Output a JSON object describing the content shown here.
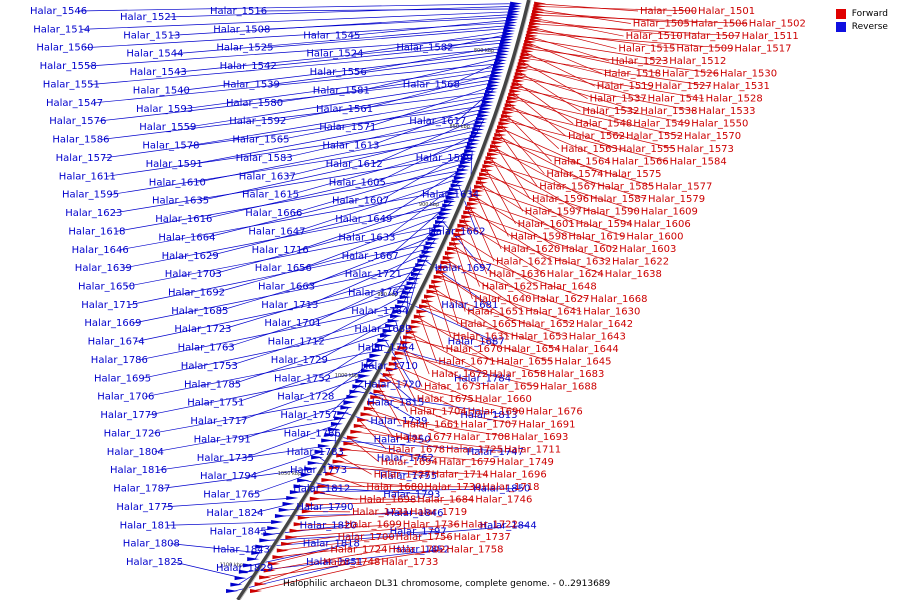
{
  "caption": "Halophilic archaeon DL31 chromosome, complete genome. - 0..2913689",
  "legend": [
    {
      "label": "Forward",
      "color": "#e00000"
    },
    {
      "label": "Reverse",
      "color": "#1010e0"
    }
  ],
  "colors": {
    "forward": "#cc0000",
    "reverse": "#0000cc",
    "backbone": "#555555"
  },
  "scale_ticks": [
    "800 kbp",
    "850 kbp",
    "900 kbp",
    "950 kbp",
    "1000 kbp",
    "1050 kbp",
    "1100 kbp"
  ],
  "reverse_genes": [
    "Halar_1546",
    "Halar_1521",
    "Halar_1516",
    "Halar_1514",
    "Halar_1513",
    "Halar_1508",
    "Halar_1545",
    "Halar_1560",
    "Halar_1544",
    "Halar_1525",
    "Halar_1524",
    "Halar_1582",
    "Halar_1558",
    "Halar_1543",
    "Halar_1542",
    "Halar_1556",
    "Halar_1551",
    "Halar_1540",
    "Halar_1539",
    "Halar_1581",
    "Halar_1568",
    "Halar_1547",
    "Halar_1593",
    "Halar_1580",
    "Halar_1561",
    "Halar_1576",
    "Halar_1559",
    "Halar_1592",
    "Halar_1571",
    "Halar_1617",
    "Halar_1586",
    "Halar_1578",
    "Halar_1565",
    "Halar_1613",
    "Halar_1572",
    "Halar_1591",
    "Halar_1583",
    "Halar_1612",
    "Halar_1589",
    "Halar_1611",
    "Halar_1610",
    "Halar_1637",
    "Halar_1605",
    "Halar_1595",
    "Halar_1635",
    "Halar_1615",
    "Halar_1607",
    "Halar_1634",
    "Halar_1623",
    "Halar_1616",
    "Halar_1666",
    "Halar_1649",
    "Halar_1618",
    "Halar_1664",
    "Halar_1647",
    "Halar_1633",
    "Halar_1662",
    "Halar_1646",
    "Halar_1629",
    "Halar_1716",
    "Halar_1667",
    "Halar_1639",
    "Halar_1703",
    "Halar_1656",
    "Halar_1721",
    "Halar_1697",
    "Halar_1650",
    "Halar_1692",
    "Halar_1663",
    "Halar_1767",
    "Halar_1715",
    "Halar_1685",
    "Halar_1713",
    "Halar_1764",
    "Halar_1681",
    "Halar_1669",
    "Halar_1723",
    "Halar_1701",
    "Halar_1689",
    "Halar_1674",
    "Halar_1763",
    "Halar_1712",
    "Halar_1754",
    "Halar_1687",
    "Halar_1786",
    "Halar_1753",
    "Halar_1729",
    "Halar_1710",
    "Halar_1695",
    "Halar_1785",
    "Halar_1752",
    "Halar_1720",
    "Halar_1784",
    "Halar_1706",
    "Halar_1751",
    "Halar_1728",
    "Halar_1815",
    "Halar_1779",
    "Halar_1717",
    "Halar_1757",
    "Halar_1739",
    "Halar_1813",
    "Halar_1726",
    "Halar_1791",
    "Halar_1766",
    "Halar_1750",
    "Halar_1804",
    "Halar_1735",
    "Halar_1783",
    "Halar_1762",
    "Halar_1747",
    "Halar_1816",
    "Halar_1794",
    "Halar_1773",
    "Halar_1755",
    "Halar_1787",
    "Halar_1765",
    "Halar_1812",
    "Halar_1793",
    "Halar_1850",
    "Halar_1775",
    "Halar_1824",
    "Halar_1790",
    "Halar_1846",
    "Halar_1811",
    "Halar_1845",
    "Halar_1820",
    "Halar_1797",
    "Halar_1844",
    "Halar_1808",
    "Halar_1843",
    "Halar_1818",
    "Halar_1852",
    "Halar_1825",
    "Halar_1829",
    "Halar_1851"
  ],
  "forward_genes": [
    "Halar_1500",
    "Halar_1501",
    "Halar_1505",
    "Halar_1506",
    "Halar_1502",
    "Halar_1510",
    "Halar_1507",
    "Halar_1511",
    "Halar_1515",
    "Halar_1509",
    "Halar_1517",
    "Halar_1523",
    "Halar_1512",
    "Halar_1518",
    "Halar_1526",
    "Halar_1530",
    "Halar_1519",
    "Halar_1527",
    "Halar_1531",
    "Halar_1537",
    "Halar_1541",
    "Halar_1528",
    "Halar_1532",
    "Halar_1538",
    "Halar_1533",
    "Halar_1548",
    "Halar_1549",
    "Halar_1550",
    "Halar_1562",
    "Halar_1552",
    "Halar_1570",
    "Halar_1563",
    "Halar_1555",
    "Halar_1573",
    "Halar_1564",
    "Halar_1566",
    "Halar_1584",
    "Halar_1574",
    "Halar_1575",
    "Halar_1567",
    "Halar_1585",
    "Halar_1577",
    "Halar_1596",
    "Halar_1587",
    "Halar_1579",
    "Halar_1597",
    "Halar_1590",
    "Halar_1609",
    "Halar_1601",
    "Halar_1594",
    "Halar_1606",
    "Halar_1598",
    "Halar_1619",
    "Halar_1600",
    "Halar_1620",
    "Halar_1602",
    "Halar_1603",
    "Halar_1621",
    "Halar_1632",
    "Halar_1622",
    "Halar_1636",
    "Halar_1624",
    "Halar_1638",
    "Halar_1625",
    "Halar_1648",
    "Halar_1640",
    "Halar_1627",
    "Halar_1668",
    "Halar_1651",
    "Halar_1641",
    "Halar_1630",
    "Halar_1665",
    "Halar_1652",
    "Halar_1642",
    "Halar_1631",
    "Halar_1653",
    "Halar_1643",
    "Halar_1670",
    "Halar_1654",
    "Halar_1644",
    "Halar_1671",
    "Halar_1655",
    "Halar_1645",
    "Halar_1672",
    "Halar_1658",
    "Halar_1683",
    "Halar_1673",
    "Halar_1659",
    "Halar_1688",
    "Halar_1675",
    "Halar_1660",
    "Halar_1704",
    "Halar_1690",
    "Halar_1676",
    "Halar_1661",
    "Halar_1707",
    "Halar_1691",
    "Halar_1677",
    "Halar_1708",
    "Halar_1693",
    "Halar_1678",
    "Halar_1725",
    "Halar_1711",
    "Halar_1694",
    "Halar_1679",
    "Halar_1749",
    "Halar_1727",
    "Halar_1714",
    "Halar_1696",
    "Halar_1680",
    "Halar_1730",
    "Halar_1718",
    "Halar_1698",
    "Halar_1684",
    "Halar_1746",
    "Halar_1731",
    "Halar_1719",
    "Halar_1699",
    "Halar_1736",
    "Halar_1722",
    "Halar_1700",
    "Halar_1756",
    "Halar_1737",
    "Halar_1724",
    "Halar_1702",
    "Halar_1758",
    "Halar_1748",
    "Halar_1733"
  ]
}
